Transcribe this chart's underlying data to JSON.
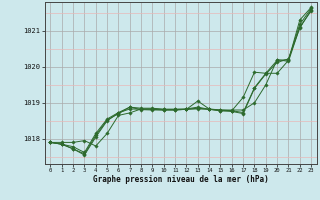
{
  "xlabel": "Graphe pression niveau de la mer (hPa)",
  "bg_color": "#cde8ec",
  "grid_color_major": "#aaaaaa",
  "grid_color_minor_h": "#e8b8b8",
  "line_color": "#2d6a2d",
  "marker_color": "#2d6a2d",
  "ylim": [
    1017.3,
    1021.8
  ],
  "xlim": [
    -0.5,
    23.5
  ],
  "yticks": [
    1018,
    1019,
    1020,
    1021
  ],
  "xticks": [
    0,
    1,
    2,
    3,
    4,
    5,
    6,
    7,
    8,
    9,
    10,
    11,
    12,
    13,
    14,
    15,
    16,
    17,
    18,
    19,
    20,
    21,
    22,
    23
  ],
  "series": [
    [
      1017.9,
      1017.9,
      1017.9,
      1017.95,
      1017.8,
      1018.15,
      1018.65,
      1018.72,
      1018.83,
      1018.83,
      1018.82,
      1018.82,
      1018.82,
      1018.83,
      1018.82,
      1018.8,
      1018.8,
      1018.8,
      1019.0,
      1019.5,
      1020.2,
      1020.15,
      1021.1,
      1021.55
    ],
    [
      1017.9,
      1017.85,
      1017.72,
      1017.55,
      1018.05,
      1018.5,
      1018.72,
      1018.83,
      1018.82,
      1018.82,
      1018.8,
      1018.8,
      1018.82,
      1019.05,
      1018.83,
      1018.8,
      1018.78,
      1019.15,
      1019.85,
      1019.82,
      1019.82,
      1020.18,
      1021.3,
      1021.65
    ],
    [
      1017.9,
      1017.85,
      1017.72,
      1017.58,
      1018.1,
      1018.52,
      1018.7,
      1018.88,
      1018.81,
      1018.8,
      1018.8,
      1018.8,
      1018.82,
      1018.85,
      1018.82,
      1018.78,
      1018.76,
      1018.7,
      1019.4,
      1019.8,
      1020.12,
      1020.22,
      1021.08,
      1021.58
    ],
    [
      1017.9,
      1017.85,
      1017.78,
      1017.62,
      1018.15,
      1018.55,
      1018.73,
      1018.88,
      1018.85,
      1018.85,
      1018.82,
      1018.82,
      1018.83,
      1018.88,
      1018.82,
      1018.78,
      1018.78,
      1018.73,
      1019.42,
      1019.82,
      1020.18,
      1020.2,
      1021.18,
      1021.62
    ]
  ]
}
